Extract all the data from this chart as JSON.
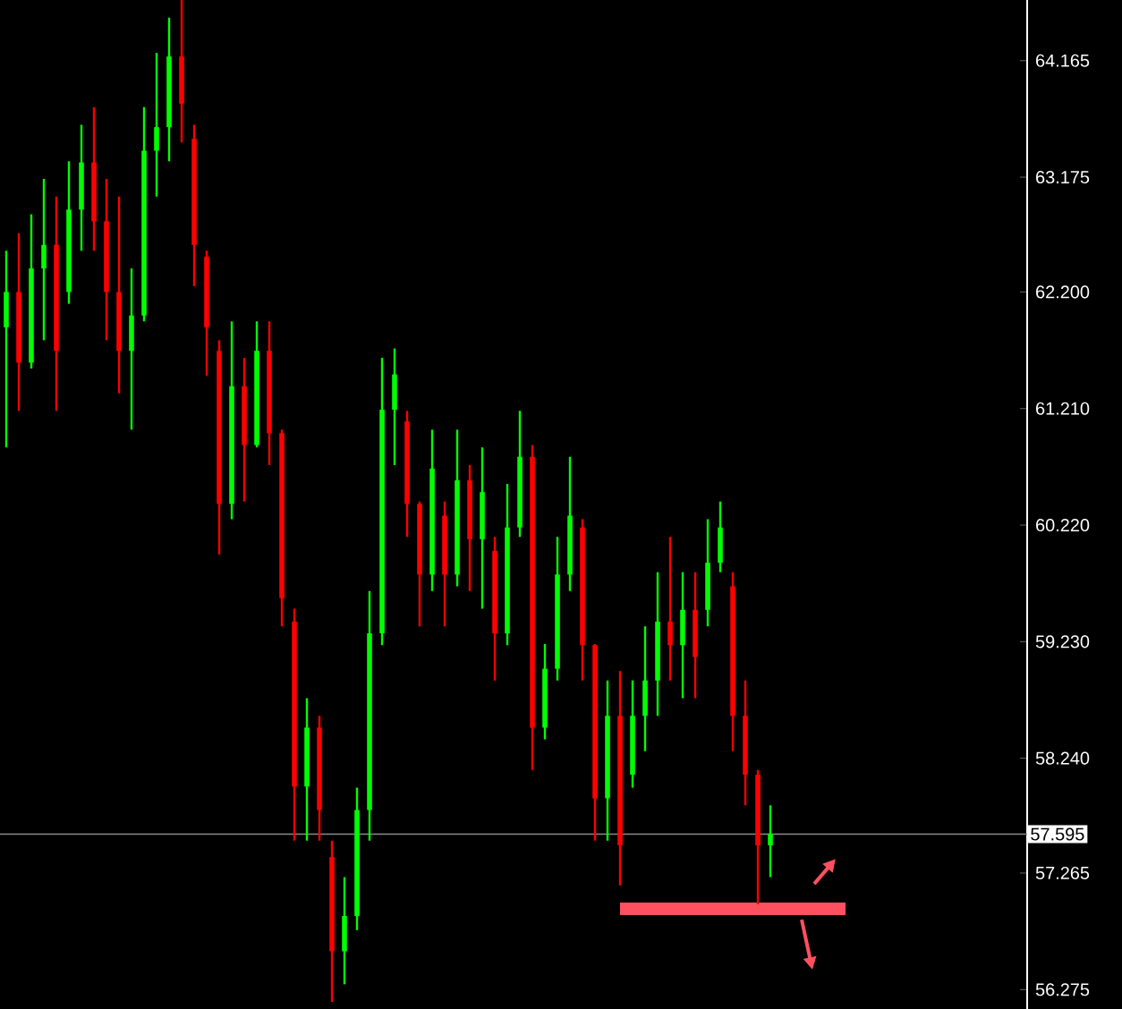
{
  "chart_data": {
    "type": "candlestick",
    "categories": [
      null,
      null,
      null,
      null,
      null,
      null,
      null,
      null,
      null,
      null,
      null,
      null,
      null,
      null,
      null,
      null,
      null,
      null,
      null,
      null,
      null,
      null,
      null,
      null,
      null,
      null,
      null,
      null,
      null,
      null,
      null,
      null,
      null,
      null,
      null,
      null,
      null,
      null,
      null,
      null,
      null,
      null,
      null,
      null,
      null,
      null,
      null,
      null,
      null,
      null,
      null,
      null,
      null,
      null,
      null,
      null,
      null,
      null,
      null,
      null,
      null,
      null,
      null,
      null,
      null,
      null,
      null,
      null,
      null,
      null,
      null,
      null,
      null,
      null,
      null,
      null,
      null,
      null,
      null,
      null,
      null,
      null
    ],
    "ohlc": [
      [
        61.9,
        62.55,
        60.88,
        62.2
      ],
      [
        62.2,
        62.7,
        61.19,
        61.6
      ],
      [
        61.6,
        62.86,
        61.55,
        62.4
      ],
      [
        62.4,
        63.16,
        61.79,
        62.6
      ],
      [
        62.6,
        63.01,
        61.19,
        61.7
      ],
      [
        62.2,
        63.31,
        62.1,
        62.9
      ],
      [
        62.9,
        63.62,
        62.55,
        63.3
      ],
      [
        63.3,
        63.77,
        62.55,
        62.8
      ],
      [
        62.8,
        63.16,
        61.79,
        62.2
      ],
      [
        62.2,
        63.01,
        61.34,
        61.7
      ],
      [
        61.7,
        62.4,
        61.03,
        62.0
      ],
      [
        62.0,
        63.77,
        61.95,
        63.4
      ],
      [
        63.4,
        64.23,
        63.01,
        63.6
      ],
      [
        63.6,
        64.53,
        63.31,
        64.2
      ],
      [
        64.2,
        64.68,
        63.47,
        63.8
      ],
      [
        63.5,
        63.62,
        62.25,
        62.6
      ],
      [
        62.5,
        62.55,
        61.49,
        61.9
      ],
      [
        61.7,
        61.79,
        59.97,
        60.4
      ],
      [
        60.4,
        61.95,
        60.27,
        61.4
      ],
      [
        61.4,
        61.64,
        60.42,
        60.9
      ],
      [
        60.9,
        61.95,
        60.88,
        61.7
      ],
      [
        61.7,
        61.95,
        60.73,
        61.0
      ],
      [
        61.0,
        61.03,
        59.36,
        59.6
      ],
      [
        59.4,
        59.51,
        57.54,
        58.0
      ],
      [
        58.0,
        58.75,
        57.54,
        58.5
      ],
      [
        58.5,
        58.6,
        57.54,
        57.8
      ],
      [
        57.4,
        57.54,
        56.17,
        56.6
      ],
      [
        56.6,
        57.23,
        56.32,
        56.9
      ],
      [
        56.9,
        57.99,
        56.78,
        57.8
      ],
      [
        57.8,
        59.66,
        57.54,
        59.3
      ],
      [
        59.3,
        61.64,
        59.2,
        61.2
      ],
      [
        61.2,
        61.72,
        60.73,
        61.5
      ],
      [
        61.1,
        61.19,
        60.12,
        60.4
      ],
      [
        60.4,
        60.42,
        59.36,
        59.8
      ],
      [
        59.8,
        61.03,
        59.66,
        60.7
      ],
      [
        60.3,
        60.42,
        59.36,
        59.8
      ],
      [
        59.8,
        61.03,
        59.7,
        60.6
      ],
      [
        60.6,
        60.73,
        59.66,
        60.1
      ],
      [
        60.1,
        60.88,
        59.51,
        60.5
      ],
      [
        60.0,
        60.12,
        58.9,
        59.3
      ],
      [
        59.3,
        60.57,
        59.2,
        60.2
      ],
      [
        60.2,
        61.19,
        60.12,
        60.8
      ],
      [
        60.8,
        60.9,
        58.14,
        58.5
      ],
      [
        58.5,
        59.21,
        58.4,
        59.0
      ],
      [
        59.0,
        60.12,
        58.9,
        59.8
      ],
      [
        59.8,
        60.8,
        59.66,
        60.3
      ],
      [
        60.2,
        60.27,
        58.9,
        59.2
      ],
      [
        59.2,
        59.21,
        57.54,
        57.9
      ],
      [
        57.9,
        58.9,
        57.54,
        58.6
      ],
      [
        58.6,
        58.98,
        57.16,
        57.5
      ],
      [
        58.1,
        58.9,
        57.99,
        58.6
      ],
      [
        58.6,
        59.36,
        58.3,
        58.9
      ],
      [
        58.9,
        59.82,
        58.6,
        59.4
      ],
      [
        59.4,
        60.12,
        58.9,
        59.2
      ],
      [
        59.2,
        59.82,
        58.75,
        59.5
      ],
      [
        59.5,
        59.82,
        58.75,
        59.1
      ],
      [
        59.5,
        60.27,
        59.36,
        59.9
      ],
      [
        59.9,
        60.42,
        59.82,
        60.2
      ],
      [
        59.7,
        59.82,
        58.3,
        58.6
      ],
      [
        58.6,
        58.9,
        57.84,
        58.1
      ],
      [
        58.1,
        58.14,
        57.0,
        57.5
      ],
      [
        57.5,
        57.84,
        57.23,
        57.6
      ],
      null,
      null,
      null,
      null,
      null,
      null,
      null,
      null,
      null,
      null,
      null,
      null,
      null,
      null,
      null,
      null,
      null,
      null,
      null,
      null
    ],
    "colors": [
      "#00ff00",
      "#ff0000",
      "#00ff00",
      "#00ff00",
      "#ff0000",
      "#00ff00",
      "#00ff00",
      "#ff0000",
      "#ff0000",
      "#ff0000",
      "#00ff00",
      "#00ff00",
      "#00ff00",
      "#00ff00",
      "#ff0000",
      "#ff0000",
      "#ff0000",
      "#ff0000",
      "#00ff00",
      "#ff0000",
      "#00ff00",
      "#ff0000",
      "#ff0000",
      "#ff0000",
      "#00ff00",
      "#ff0000",
      "#ff0000",
      "#00ff00",
      "#00ff00",
      "#00ff00",
      "#00ff00",
      "#00ff00",
      "#ff0000",
      "#ff0000",
      "#00ff00",
      "#ff0000",
      "#00ff00",
      "#ff0000",
      "#00ff00",
      "#ff0000",
      "#00ff00",
      "#00ff00",
      "#ff0000",
      "#00ff00",
      "#00ff00",
      "#00ff00",
      "#ff0000",
      "#ff0000",
      "#00ff00",
      "#ff0000",
      "#00ff00",
      "#00ff00",
      "#00ff00",
      "#ff0000",
      "#00ff00",
      "#ff0000",
      "#00ff00",
      "#00ff00",
      "#ff0000",
      "#ff0000",
      "#ff0000",
      "#00ff00",
      null,
      null,
      null,
      null,
      null,
      null,
      null,
      null,
      null,
      null,
      null,
      null,
      null,
      null,
      null,
      null,
      null,
      null,
      null,
      null
    ],
    "series": [
      {
        "type": "line",
        "color": "#ff5060",
        "values": [
          null,
          null,
          null,
          null,
          null,
          null,
          null,
          null,
          null,
          null,
          null,
          null,
          null,
          null,
          null,
          null,
          null,
          null,
          null,
          null,
          null,
          null,
          null,
          null,
          null,
          null,
          null,
          null,
          null,
          null,
          null,
          null,
          null,
          null,
          null,
          null,
          null,
          null,
          null,
          null,
          null,
          null,
          null,
          null,
          null,
          null,
          null,
          null,
          null,
          56.96,
          56.96,
          56.96,
          56.96,
          56.96,
          56.96,
          56.96,
          56.96,
          56.96,
          56.96,
          56.96,
          56.96,
          56.96,
          56.96,
          56.96,
          56.96,
          56.96,
          56.96,
          56.96,
          null,
          null,
          null,
          null,
          null,
          null,
          null,
          null,
          null,
          null,
          null,
          null,
          null,
          null
        ]
      }
    ],
    "ylim": [
      56.11,
      64.68
    ],
    "yticks": [
      {
        "value": 56.275,
        "label": "56.275"
      },
      {
        "value": 57.265,
        "label": "57.265"
      },
      {
        "value": 58.24,
        "label": "58.240"
      },
      {
        "value": 59.23,
        "label": "59.230"
      },
      {
        "value": 60.22,
        "label": "60.220"
      },
      {
        "value": 61.21,
        "label": "61.210"
      },
      {
        "value": 62.2,
        "label": "62.200"
      },
      {
        "value": 63.175,
        "label": "63.175"
      },
      {
        "value": 64.165,
        "label": "64.165"
      }
    ],
    "ref_lines": [
      {
        "axis": "y",
        "value": 57.595,
        "label": "57.595",
        "color": "#8c8c8c"
      }
    ],
    "grid": false
  }
}
